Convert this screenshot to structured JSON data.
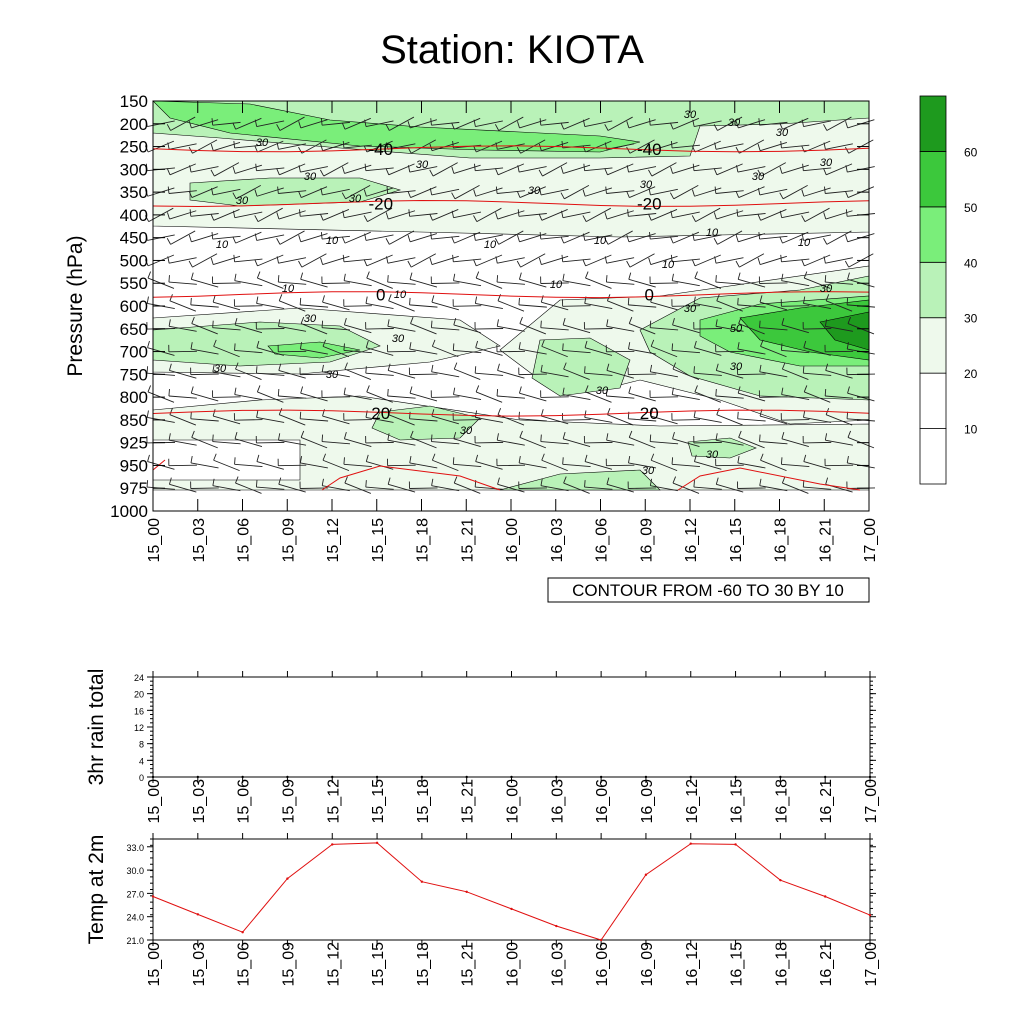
{
  "title": "Station: KIOTA",
  "time_labels": [
    "15_00",
    "15_03",
    "15_06",
    "15_09",
    "15_12",
    "15_15",
    "15_18",
    "15_21",
    "16_00",
    "16_03",
    "16_06",
    "16_09",
    "16_12",
    "16_15",
    "16_18",
    "16_21",
    "17_00"
  ],
  "chart_data": [
    {
      "type": "heatmap",
      "ylabel": "Pressure (hPa)",
      "levels": [
        150,
        200,
        250,
        300,
        350,
        400,
        450,
        500,
        550,
        600,
        650,
        700,
        750,
        800,
        850,
        925,
        950,
        975,
        1000
      ],
      "annotation": "CONTOUR FROM -60 TO 30 BY 10",
      "colorbar": {
        "labels": [
          "10",
          "20",
          "30",
          "40",
          "50",
          "60"
        ],
        "colors": [
          "#ffffff",
          "#ffffff",
          "#eef9ec",
          "#b9f2b8",
          "#7aee7a",
          "#3cc83c",
          "#1e9a1e"
        ]
      },
      "humidity_labels": [
        "10",
        "30",
        "50"
      ],
      "temperature_contours": [
        {
          "value": -40,
          "label": "-40",
          "pressure": 255
        },
        {
          "value": -20,
          "label": "-20",
          "pressure": 375
        },
        {
          "value": 0,
          "label": "0",
          "pressure": 575
        },
        {
          "value": 20,
          "label": "20",
          "pressure": 835
        }
      ]
    },
    {
      "type": "line",
      "ylabel": "3hr rain total",
      "yticks": [
        "0",
        "4",
        "8",
        "12",
        "16",
        "20",
        "24"
      ],
      "ylim": [
        0,
        24
      ],
      "values": [
        0,
        0,
        0,
        0,
        0,
        0,
        0,
        0,
        0,
        0,
        0,
        0,
        0,
        0,
        0,
        0,
        0
      ]
    },
    {
      "type": "line",
      "ylabel": "Temp at 2m",
      "yticks": [
        "21.0",
        "24.0",
        "27.0",
        "30.0",
        "33.0"
      ],
      "ylim": [
        21,
        34
      ],
      "color": "#e01010",
      "values": [
        26.6,
        24.3,
        22.0,
        28.9,
        33.3,
        33.5,
        28.5,
        27.2,
        25.0,
        22.8,
        21.0,
        29.4,
        33.4,
        33.3,
        28.7,
        26.6,
        24.2
      ]
    }
  ]
}
